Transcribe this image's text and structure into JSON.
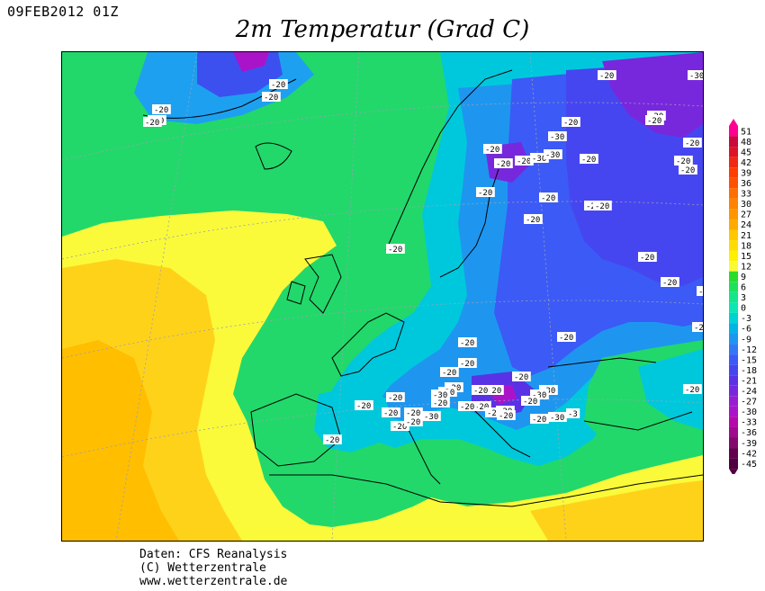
{
  "header": {
    "date": "09FEB2012 01Z",
    "title": "2m Temperatur (Grad C)"
  },
  "legend": {
    "values": [
      "51",
      "48",
      "45",
      "42",
      "39",
      "36",
      "33",
      "30",
      "27",
      "24",
      "21",
      "18",
      "15",
      "12",
      "9",
      "6",
      "3",
      "0",
      "-3",
      "-6",
      "-9",
      "-12",
      "-15",
      "-18",
      "-21",
      "-24",
      "-27",
      "-30",
      "-33",
      "-36",
      "-39",
      "-42",
      "-45"
    ],
    "colors": [
      "#ff0090",
      "#c80a3c",
      "#dc1428",
      "#f02814",
      "#ff3c00",
      "#ff5000",
      "#ff6e00",
      "#ff8200",
      "#ff9600",
      "#ffaa00",
      "#ffc800",
      "#ffdc00",
      "#fff000",
      "#fafa32",
      "#2add2a",
      "#1ee15a",
      "#14e68c",
      "#0ae6b4",
      "#00d2d2",
      "#00b4e6",
      "#1e96f0",
      "#3278f5",
      "#3c5af5",
      "#4646f0",
      "#5a32e6",
      "#7828dc",
      "#961ed2",
      "#aa14c8",
      "#b40aaa",
      "#a00a8c",
      "#820a6e",
      "#640050",
      "#500040"
    ]
  },
  "isotherm_labels": [
    "-20",
    "-30",
    "-20",
    "-20",
    "-20",
    "-30",
    "-20",
    "-20",
    "-20",
    "-30",
    "-20",
    "-20",
    "-20",
    "-30",
    "-20",
    "-30",
    "-20",
    "-20",
    "-20",
    "-20",
    "-20",
    "-20",
    "-20",
    "-20",
    "-20",
    "-20",
    "-20",
    "-20",
    "-20",
    "-20",
    "-20",
    "-20",
    "-20",
    "-20",
    "-20",
    "-30",
    "-20",
    "-20",
    "-20",
    "-30",
    "-30",
    "-20",
    "-20",
    "-20",
    "-20",
    "-20",
    "-20",
    "-20",
    "-20",
    "-20",
    "-20",
    "-20",
    "-20",
    "-30",
    "-20",
    "-3",
    "-30",
    "-20",
    "-20",
    "-20",
    "-20"
  ],
  "credits": {
    "line1": "Daten: CFS Reanalysis",
    "line2": "(C) Wetterzentrale",
    "line3": "www.wetterzentrale.de"
  }
}
